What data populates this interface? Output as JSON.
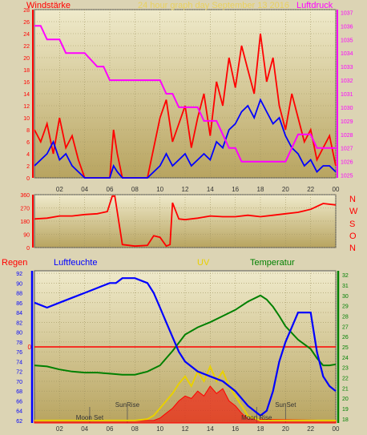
{
  "header": {
    "left_label": "Windstärke",
    "center_label": "24 hour graph day   September 13 2016",
    "right_label": "Luftdruck",
    "left_color": "#ff0000",
    "center_color": "#e8d060",
    "right_color": "#ff00ff"
  },
  "wind_dir_labels": [
    "N",
    "W",
    "S",
    "O",
    "N"
  ],
  "bottom_labels": {
    "regen": "Regen",
    "luftfeuchte": "Luftfeuchte",
    "uv": "UV",
    "temperatur": "Temperatur",
    "regen_color": "#ff0000",
    "luftfeuchte_color": "#0000ff",
    "uv_color": "#e8d000",
    "temperatur_color": "#008000"
  },
  "chart_data": [
    {
      "type": "line",
      "panel": "wind-pressure",
      "x_ticks": [
        "02",
        "04",
        "06",
        "08",
        "10",
        "12",
        "14",
        "16",
        "18",
        "20",
        "22",
        "00"
      ],
      "x_range_hours": [
        0,
        24
      ],
      "left_axis": {
        "ticks": [
          0,
          2,
          4,
          6,
          8,
          10,
          12,
          14,
          16,
          18,
          20,
          22,
          24,
          26,
          28
        ],
        "range": [
          0,
          28
        ],
        "color": "#ff0000"
      },
      "right_axis": {
        "ticks": [
          1025,
          1026,
          1027,
          1028,
          1029,
          1030,
          1031,
          1032,
          1033,
          1034,
          1035,
          1036,
          1037
        ],
        "range": [
          1024.8,
          1037.2
        ],
        "color": "#ff00ff"
      },
      "series": [
        {
          "name": "Windstärke",
          "axis": "left",
          "color": "#ff0000",
          "x": [
            0,
            0.5,
            1,
            1.5,
            2,
            2.5,
            3,
            3.5,
            4,
            6,
            6.3,
            6.6,
            7,
            7.5,
            8,
            9,
            10,
            10.5,
            11,
            11.5,
            12,
            12.5,
            13,
            13.5,
            14,
            14.5,
            15,
            15.5,
            16,
            16.5,
            17,
            17.5,
            18,
            18.5,
            19,
            19.5,
            20,
            20.5,
            21,
            21.5,
            22,
            22.5,
            23,
            23.5,
            24
          ],
          "y": [
            8,
            6,
            9,
            4,
            10,
            5,
            7,
            3,
            0,
            0,
            8,
            4,
            0,
            0,
            0,
            0,
            10,
            13,
            6,
            9,
            12,
            5,
            10,
            14,
            7,
            16,
            12,
            20,
            15,
            22,
            18,
            14,
            24,
            16,
            20,
            12,
            8,
            14,
            10,
            6,
            8,
            3,
            5,
            7,
            2
          ]
        },
        {
          "name": "Windstärke (average)",
          "axis": "left",
          "color": "#0000ff",
          "x": [
            0,
            0.5,
            1,
            1.5,
            2,
            2.5,
            3,
            3.5,
            4,
            6,
            6.3,
            6.6,
            7,
            7.5,
            8,
            9,
            10,
            10.5,
            11,
            11.5,
            12,
            12.5,
            13,
            13.5,
            14,
            14.5,
            15,
            15.5,
            16,
            16.5,
            17,
            17.5,
            18,
            18.5,
            19,
            19.5,
            20,
            20.5,
            21,
            21.5,
            22,
            22.5,
            23,
            23.5,
            24
          ],
          "y": [
            2,
            3,
            4,
            6,
            3,
            4,
            2,
            1,
            0,
            0,
            2,
            1,
            0,
            0,
            0,
            0,
            2,
            4,
            2,
            3,
            4,
            2,
            3,
            4,
            3,
            6,
            5,
            8,
            9,
            11,
            12,
            10,
            13,
            11,
            9,
            10,
            7,
            5,
            4,
            2,
            3,
            1,
            2,
            2,
            1
          ]
        },
        {
          "name": "Luftdruck",
          "axis": "right",
          "color": "#ff00ff",
          "x": [
            0,
            0.5,
            1,
            2,
            2.5,
            3,
            3.5,
            4,
            5,
            5.5,
            6,
            6.5,
            7,
            7.5,
            8,
            9,
            9.5,
            10,
            10.5,
            11,
            11.5,
            12,
            13,
            13.5,
            14,
            14.5,
            15,
            15.5,
            16,
            16.5,
            17,
            17.5,
            18,
            19,
            19.5,
            20,
            20.5,
            21,
            21.5,
            22,
            22.5,
            23,
            23.5,
            24
          ],
          "y": [
            1036,
            1036,
            1035,
            1035,
            1034,
            1034,
            1034,
            1034,
            1033,
            1033,
            1032,
            1032,
            1032,
            1032,
            1032,
            1032,
            1032,
            1032,
            1031,
            1031,
            1030,
            1030,
            1030,
            1029,
            1029,
            1029,
            1028,
            1027,
            1027,
            1026,
            1026,
            1026,
            1026,
            1026,
            1026,
            1026,
            1027,
            1028,
            1028,
            1028,
            1027,
            1027,
            1027,
            1027
          ]
        }
      ]
    },
    {
      "type": "line",
      "panel": "wind-direction",
      "x_range_hours": [
        0,
        24
      ],
      "y_axis": {
        "ticks": [
          0,
          90,
          180,
          270,
          360
        ],
        "range": [
          0,
          360
        ]
      },
      "series": [
        {
          "name": "Windrichtung",
          "color": "#ff0000",
          "x": [
            0,
            1,
            2,
            3,
            4,
            5,
            5.8,
            6.2,
            6.4,
            7,
            8,
            9,
            9.5,
            10,
            10.5,
            10.8,
            11,
            11.5,
            12,
            13,
            14,
            15,
            16,
            17,
            18,
            19,
            20,
            21,
            22,
            23,
            24
          ],
          "y": [
            195,
            200,
            215,
            215,
            225,
            230,
            245,
            350,
            350,
            20,
            10,
            15,
            80,
            70,
            10,
            20,
            305,
            195,
            190,
            200,
            215,
            210,
            210,
            220,
            210,
            220,
            230,
            240,
            260,
            300,
            290
          ]
        }
      ]
    },
    {
      "type": "line",
      "panel": "rain-humidity-uv-temperature",
      "x_ticks": [
        "02",
        "04",
        "06",
        "08",
        "10",
        "12",
        "14",
        "16",
        "18",
        "20",
        "22",
        "00"
      ],
      "x_range_hours": [
        0,
        24
      ],
      "left_axis": {
        "ticks": [
          62,
          64,
          66,
          68,
          70,
          72,
          74,
          76,
          78,
          80,
          82,
          84,
          86,
          88,
          90,
          92
        ],
        "range": [
          61.5,
          92.5
        ],
        "color": "#0000ff"
      },
      "rain_axis": {
        "ticks": [
          0
        ],
        "color": "#ff0000"
      },
      "right_axis": {
        "ticks": [
          18,
          19,
          20,
          21,
          22,
          23,
          24,
          25,
          26,
          27,
          28,
          29,
          30,
          31,
          32
        ],
        "range": [
          17.6,
          32.4
        ],
        "color": "#008000"
      },
      "annotations": [
        {
          "label": "Moon Set",
          "x": 4.4
        },
        {
          "label": "SunRise",
          "x": 7.4
        },
        {
          "label": "Moon Rise",
          "x": 17.7
        },
        {
          "label": "SunSet",
          "x": 20.0
        }
      ],
      "series": [
        {
          "name": "Luftfeuchte",
          "axis": "left",
          "color": "#0000ff",
          "x": [
            0,
            1,
            2,
            3,
            4,
            5,
            6,
            6.5,
            7,
            8,
            9,
            9.5,
            10,
            10.5,
            11,
            11.5,
            12,
            13,
            14,
            15,
            16,
            17,
            18,
            18.5,
            19,
            19.5,
            20,
            21,
            22,
            22.5,
            23,
            23.5,
            24
          ],
          "y": [
            86,
            85,
            86,
            87,
            88,
            89,
            90,
            90,
            91,
            91,
            90,
            88,
            85,
            82,
            79,
            76,
            74,
            72,
            71,
            70,
            68,
            65,
            63,
            64,
            68,
            74,
            78,
            84,
            84,
            76,
            71,
            69,
            68
          ]
        },
        {
          "name": "Temperatur",
          "axis": "right",
          "color": "#008000",
          "x": [
            0,
            1,
            2,
            3,
            4,
            5,
            6,
            7,
            8,
            9,
            10,
            10.5,
            11,
            11.5,
            12,
            13,
            14,
            15,
            16,
            17,
            18,
            18.5,
            19,
            19.5,
            20,
            21,
            22,
            22.5,
            23,
            23.5,
            24
          ],
          "y": [
            23.2,
            23.1,
            22.8,
            22.6,
            22.5,
            22.5,
            22.4,
            22.3,
            22.3,
            22.6,
            23.2,
            23.9,
            24.6,
            25.4,
            26.2,
            26.9,
            27.4,
            28.0,
            28.6,
            29.4,
            30.0,
            29.6,
            28.9,
            28.0,
            27.0,
            25.7,
            24.8,
            23.9,
            23.2,
            23.2,
            23.3
          ]
        },
        {
          "name": "UV",
          "axis": "left",
          "color": "#e8d000",
          "x": [
            0,
            8,
            9,
            9.5,
            10,
            10.5,
            11,
            11.5,
            12,
            12.5,
            13,
            13.5,
            14,
            14.5,
            15,
            15.5,
            16,
            16.5,
            17,
            18,
            24
          ],
          "y": [
            62,
            62,
            62.3,
            63,
            64.5,
            66,
            67.5,
            69.5,
            71,
            69,
            72,
            70,
            73,
            70,
            72,
            69,
            67,
            65,
            63,
            62,
            62
          ]
        },
        {
          "name": "Solar",
          "axis": "left",
          "color": "#ff0000",
          "x": [
            0,
            9.5,
            10,
            10.5,
            11,
            11.5,
            12,
            12.5,
            13,
            13.5,
            14,
            14.5,
            15,
            15.5,
            16,
            16.5,
            17,
            24
          ],
          "y": [
            62,
            62,
            62.5,
            63.5,
            64.5,
            66,
            67,
            66.5,
            68,
            67,
            69,
            67.5,
            68.5,
            66,
            65,
            63.5,
            62.3,
            62
          ]
        }
      ]
    }
  ]
}
